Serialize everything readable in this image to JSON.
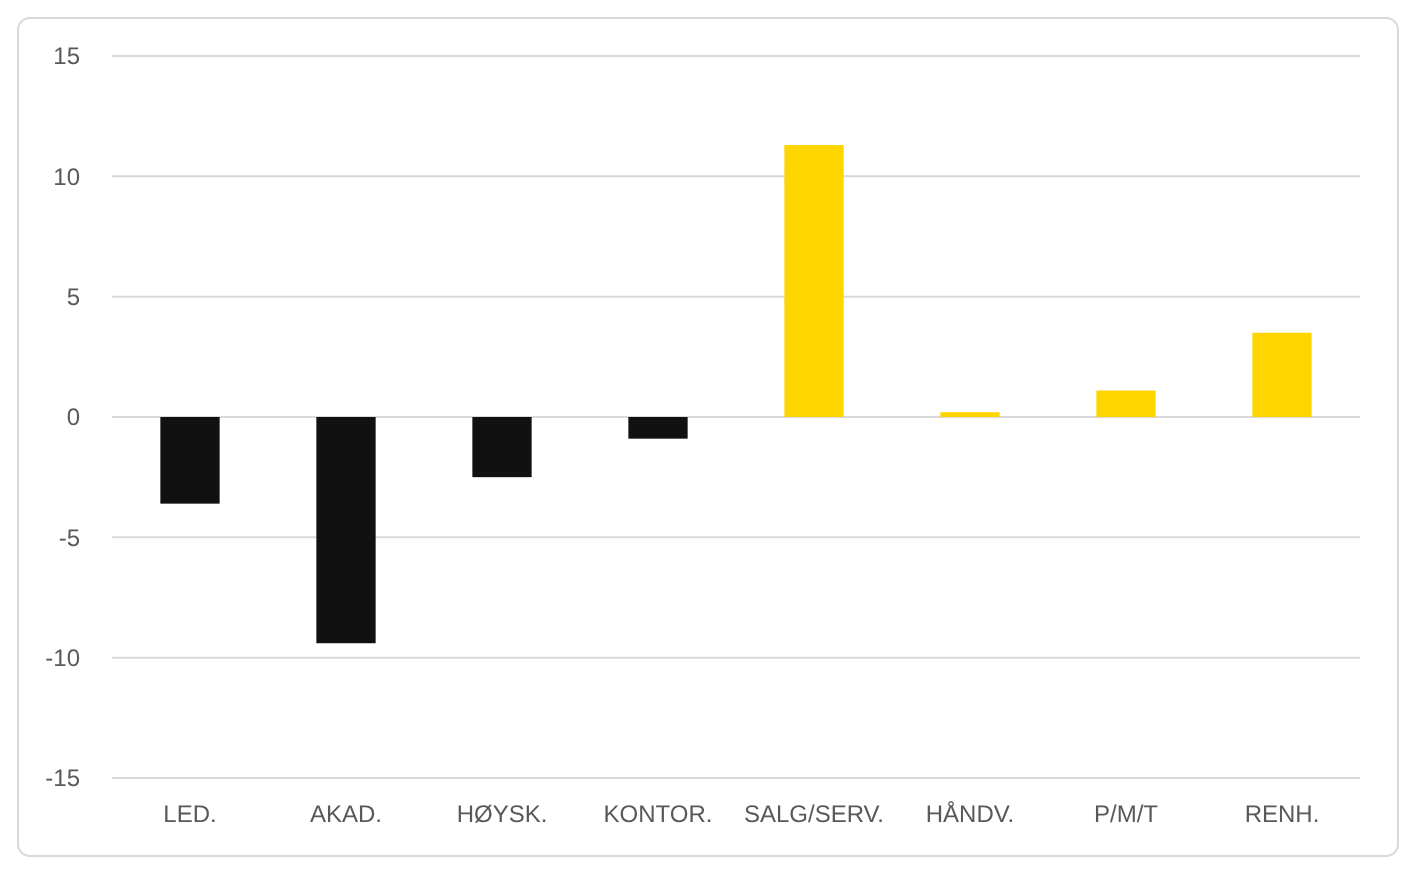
{
  "chart_data": {
    "type": "bar",
    "categories": [
      "LED.",
      "AKAD.",
      "HØYSK.",
      "KONTOR.",
      "SALG/SERV.",
      "HÅNDV.",
      "P/M/T",
      "RENH."
    ],
    "values": [
      -3.6,
      -9.4,
      -2.5,
      -0.9,
      11.3,
      0.2,
      1.1,
      3.5
    ],
    "colors": [
      "#111111",
      "#111111",
      "#111111",
      "#111111",
      "#ffd500",
      "#ffd500",
      "#ffd500",
      "#ffd500"
    ],
    "ylim": [
      -15,
      15
    ],
    "yticks": [
      -15,
      -10,
      -5,
      0,
      5,
      10,
      15
    ],
    "grid": "y"
  }
}
